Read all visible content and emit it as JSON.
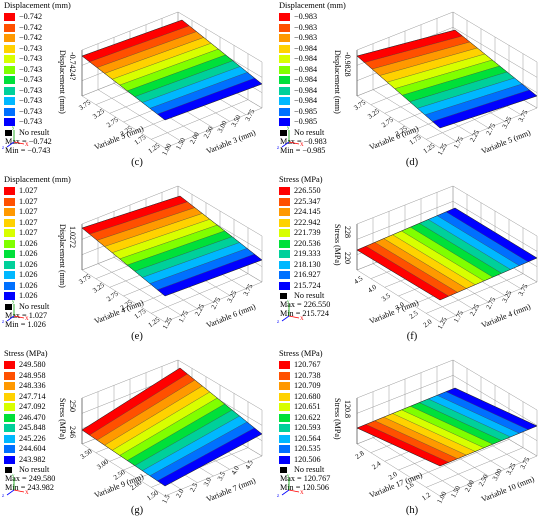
{
  "colors": [
    "#ff0000",
    "#ff5000",
    "#ff9900",
    "#ffd200",
    "#d8ff00",
    "#80ff00",
    "#00e03a",
    "#00d09a",
    "#00b8ff",
    "#0070ff",
    "#0000ff"
  ],
  "labels": {
    "no_result": "No result",
    "triad_x": "X",
    "triad_y": "y",
    "triad_z": "z"
  },
  "panels": [
    {
      "id": "c",
      "caption": "(c)",
      "legend_title": "Displacement (mm)",
      "levels": [
        "−0.742",
        "−0.742",
        "−0.742",
        "−0.743",
        "−0.743",
        "−0.743",
        "−0.743",
        "−0.743",
        "−0.743",
        "−0.743",
        "−0.743"
      ],
      "max": "Max = −0.742",
      "min": "Min = −0.743",
      "zlabel": "Displacement (mm)",
      "ztick": "-0.7424?",
      "xlabel": "Variable 5 (mm)",
      "ylabel": "Variable 3 (mm)",
      "xticks": [
        "3.75",
        "3.25",
        "2.75",
        "2.25",
        "1.75",
        "1.25"
      ],
      "yticks": [
        "1.00",
        "1.50",
        "2.00",
        "2.50",
        "3.00",
        "3.50",
        "3.75"
      ],
      "chart_data": {
        "type": "surface",
        "field": "Displacement (mm)",
        "range": [
          -0.743,
          -0.742
        ]
      }
    },
    {
      "id": "d",
      "caption": "(d)",
      "legend_title": "Displacement (mm)",
      "levels": [
        "−0.983",
        "−0.983",
        "−0.983",
        "−0.984",
        "−0.984",
        "−0.984",
        "−0.984",
        "−0.984",
        "−0.984",
        "−0.985",
        "−0.985"
      ],
      "max": "Max = −0.983",
      "min": "Min = −0.985",
      "zlabel": "Displacement (mm)",
      "ztick": "-0.9828",
      "xlabel": "Variable 6 (mm)",
      "ylabel": "Variable 5 (mm)",
      "xticks": [
        "3.75",
        "3.25",
        "2.75",
        "2.25",
        "1.75",
        "1.25"
      ],
      "yticks": [
        "1.25",
        "1.75",
        "2.25",
        "2.75",
        "3.25",
        "3.75"
      ],
      "chart_data": {
        "type": "surface",
        "field": "Displacement (mm)",
        "range": [
          -0.985,
          -0.983
        ]
      }
    },
    {
      "id": "e",
      "caption": "(e)",
      "legend_title": "Displacement (mm)",
      "levels": [
        "1.027",
        "1.027",
        "1.027",
        "1.027",
        "1.027",
        "1.026",
        "1.026",
        "1.026",
        "1.026",
        "1.026",
        "1.026"
      ],
      "max": "Max = 1.027",
      "min": "Min = 1.026",
      "zlabel": "Displacement (mm)",
      "ztick": "1.0272",
      "xlabel": "Variable 4 (mm)",
      "ylabel": "Variable 6 (mm)",
      "xticks": [
        "3.75",
        "3.25",
        "2.75",
        "2.25",
        "1.75",
        "1.25"
      ],
      "yticks": [
        "1.25",
        "1.75",
        "2.25",
        "2.75",
        "3.25",
        "3.75"
      ],
      "chart_data": {
        "type": "surface",
        "field": "Displacement (mm)",
        "range": [
          1.026,
          1.027
        ]
      }
    },
    {
      "id": "f",
      "caption": "(f)",
      "legend_title": "Stress (MPa)",
      "levels": [
        "226.550",
        "225.347",
        "224.145",
        "222.942",
        "221.739",
        "220.536",
        "219.333",
        "218.130",
        "216.927",
        "215.724"
      ],
      "max": "Max = 226.550",
      "min": "Min = 215.724",
      "zlabel": "Stress (MPa)",
      "ztick": "228",
      "ztick2": "220",
      "xlabel": "Variable 7 (mm)",
      "ylabel": "Variable 4 (mm)",
      "xticks": [
        "4.5",
        "4.0",
        "3.5",
        "3.0",
        "2.5",
        "2.0"
      ],
      "yticks": [
        "1.25",
        "1.75",
        "2.25",
        "2.75",
        "3.25",
        "3.75"
      ],
      "chart_data": {
        "type": "surface",
        "field": "Stress (MPa)",
        "range": [
          215.724,
          226.55
        ]
      }
    },
    {
      "id": "g",
      "caption": "(g)",
      "legend_title": "Stress (MPa)",
      "levels": [
        "249.580",
        "248.958",
        "248.336",
        "247.714",
        "247.092",
        "246.470",
        "245.848",
        "245.226",
        "244.604",
        "243.982"
      ],
      "max": "Max = 249.580",
      "min": "Min = 243.982",
      "zlabel": "Stress (MPa)",
      "ztick": "250",
      "ztick2": "246",
      "xlabel": "Variable 9 (mm)",
      "ylabel": "Variable 7 (mm)",
      "xticks": [
        "3.50",
        "3.00",
        "2.50",
        "2.00",
        "1.50"
      ],
      "yticks": [
        "1.5",
        "2.0",
        "2.5",
        "3.0",
        "3.5",
        "4.0",
        "4.5"
      ],
      "chart_data": {
        "type": "surface",
        "field": "Stress (MPa)",
        "range": [
          243.982,
          249.58
        ]
      }
    },
    {
      "id": "h",
      "caption": "(h)",
      "legend_title": "Stress (MPa)",
      "levels": [
        "120.767",
        "120.738",
        "120.709",
        "120.680",
        "120.651",
        "120.622",
        "120.593",
        "120.564",
        "120.535",
        "120.506"
      ],
      "max": "Max = 120.767",
      "min": "Min = 120.506",
      "zlabel": "Stress (MPa)",
      "ztick": "120.8",
      "xlabel": "Variable 17 (mm)",
      "ylabel": "Variable 10 (mm)",
      "xticks": [
        "2.8",
        "2.4",
        "2.0",
        "1.6",
        "1.2"
      ],
      "yticks": [
        "1.00",
        "1.50",
        "2.00",
        "2.50",
        "3.00",
        "3.25",
        "3.75"
      ],
      "chart_data": {
        "type": "surface",
        "field": "Stress (MPa)",
        "range": [
          120.506,
          120.767
        ]
      }
    }
  ]
}
